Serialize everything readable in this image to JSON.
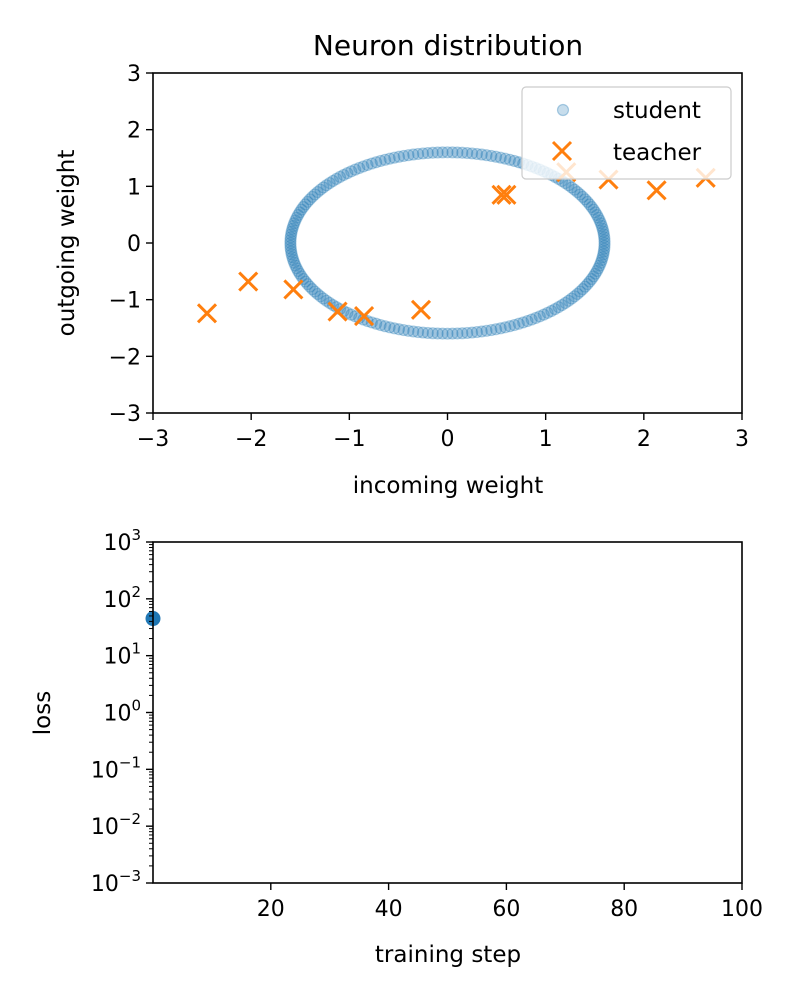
{
  "chart_data": [
    {
      "type": "scatter",
      "title": "Neuron distribution",
      "xlabel": "incoming weight",
      "ylabel": "outgoing weight",
      "xlim": [
        -3,
        3
      ],
      "ylim": [
        -3,
        3
      ],
      "xticks": [
        -3,
        -2,
        -1,
        0,
        1,
        2,
        3
      ],
      "yticks": [
        -3,
        -2,
        -1,
        0,
        1,
        2,
        3
      ],
      "xtick_labels": [
        "−3",
        "−2",
        "−1",
        "0",
        "1",
        "2",
        "3"
      ],
      "ytick_labels": [
        "−3",
        "−2",
        "−1",
        "0",
        "1",
        "2",
        "3"
      ],
      "grid": false,
      "legend_position": "top-right",
      "series": [
        {
          "name": "student",
          "marker": "circle",
          "color": "#1f77b4",
          "shape": "ellipse",
          "center": [
            0,
            0
          ],
          "radius_x": 1.6,
          "radius_y": 1.6,
          "num_points": 200
        },
        {
          "name": "teacher",
          "marker": "x",
          "color": "#ff7f0e",
          "points": [
            [
              -2.45,
              -1.24
            ],
            [
              -2.03,
              -0.68
            ],
            [
              -1.57,
              -0.82
            ],
            [
              -1.12,
              -1.21
            ],
            [
              -0.85,
              -1.29
            ],
            [
              -0.27,
              -1.18
            ],
            [
              0.55,
              0.85
            ],
            [
              0.6,
              0.85
            ],
            [
              1.21,
              1.25
            ],
            [
              1.64,
              1.12
            ],
            [
              2.13,
              0.93
            ],
            [
              2.63,
              1.15
            ]
          ]
        }
      ]
    },
    {
      "type": "scatter",
      "xlabel": "training step",
      "ylabel": "loss",
      "xlim": [
        0,
        100
      ],
      "ylim_log10": [
        -3,
        3
      ],
      "yscale": "log",
      "xticks": [
        20,
        40,
        60,
        80,
        100
      ],
      "xtick_labels": [
        "20",
        "40",
        "60",
        "80",
        "100"
      ],
      "ytick_exponents": [
        -3,
        -2,
        -1,
        0,
        1,
        2,
        3
      ],
      "ytick_base": "10",
      "grid": false,
      "series": [
        {
          "marker": "circle",
          "color": "#1f77b4",
          "points": [
            [
              0,
              45
            ]
          ]
        }
      ]
    }
  ]
}
